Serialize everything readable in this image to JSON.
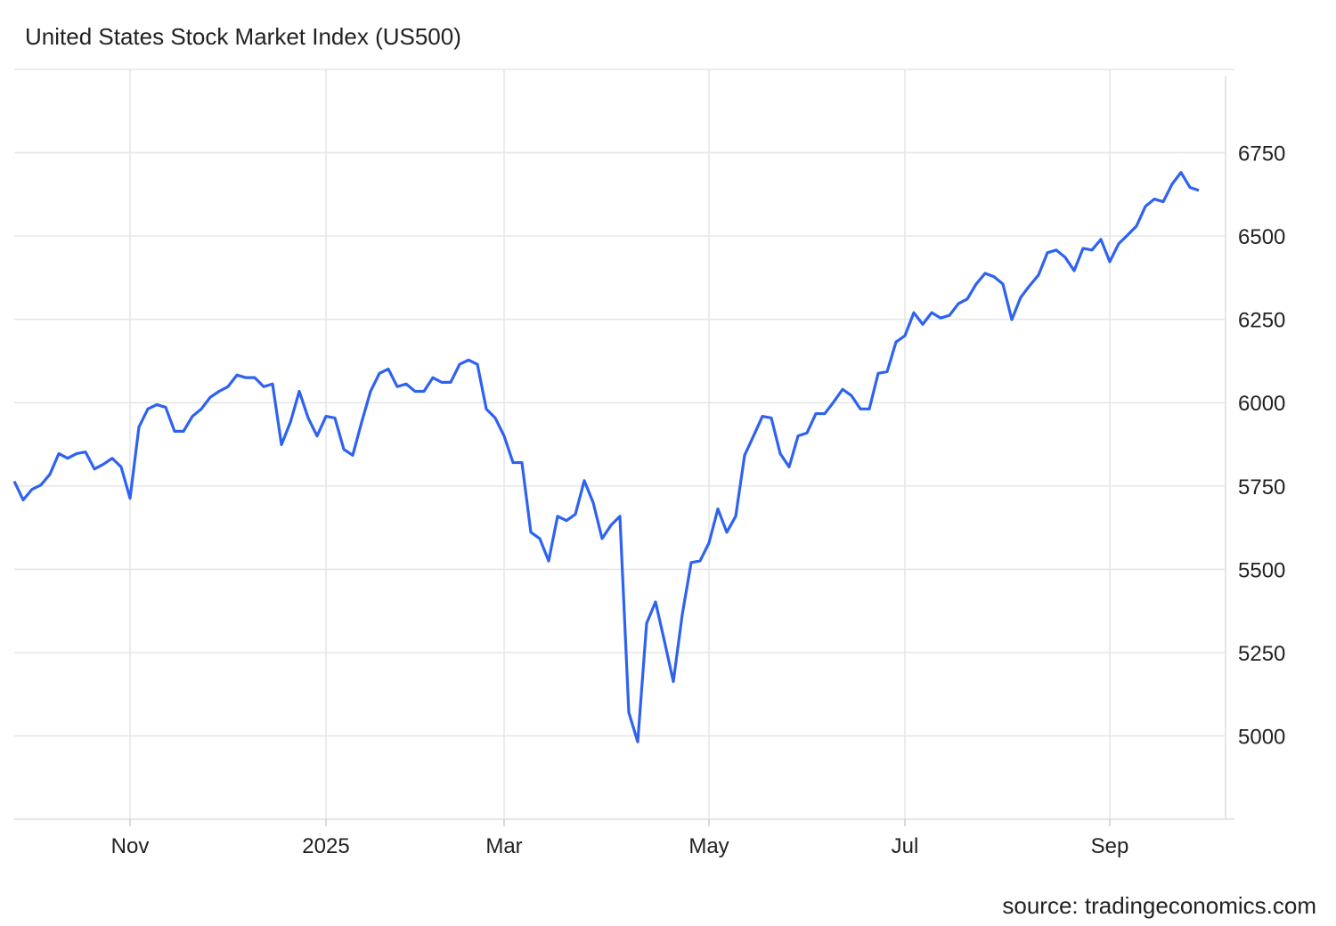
{
  "chart_data": {
    "type": "line",
    "title": "United States Stock Market Index (US500)",
    "source": "source: tradingeconomics.com",
    "color": "#2e62f0",
    "ylim": [
      4750,
      7000
    ],
    "yticks": [
      5000,
      5250,
      5500,
      5750,
      6000,
      6250,
      6500,
      6750
    ],
    "grid": true,
    "categories": [
      null,
      null,
      null,
      null,
      null,
      null,
      null,
      null,
      null,
      null,
      null,
      null,
      null,
      "Nov",
      null,
      null,
      null,
      null,
      null,
      null,
      null,
      null,
      null,
      null,
      null,
      null,
      null,
      null,
      null,
      null,
      null,
      null,
      null,
      null,
      null,
      "2025",
      null,
      null,
      null,
      null,
      null,
      null,
      null,
      null,
      null,
      null,
      null,
      null,
      null,
      null,
      null,
      null,
      null,
      null,
      null,
      "Mar",
      null,
      null,
      null,
      null,
      null,
      null,
      null,
      null,
      null,
      null,
      null,
      null,
      null,
      null,
      null,
      null,
      null,
      null,
      null,
      null,
      null,
      null,
      "May",
      null,
      null,
      null,
      null,
      null,
      null,
      null,
      null,
      null,
      null,
      null,
      null,
      null,
      null,
      null,
      null,
      null,
      null,
      null,
      null,
      null,
      "Jul",
      null,
      null,
      null,
      null,
      null,
      null,
      null,
      null,
      null,
      null,
      null,
      null,
      null,
      null,
      null,
      null,
      null,
      null,
      null,
      null,
      null,
      null,
      "Sep",
      null,
      null,
      null,
      null,
      null,
      null,
      null,
      null,
      null,
      null
    ],
    "values": [
      5764,
      5708,
      5740,
      5753,
      5785,
      5847,
      5833,
      5847,
      5852,
      5801,
      5815,
      5833,
      5807,
      5713,
      5927,
      5981,
      5994,
      5986,
      5914,
      5914,
      5959,
      5981,
      6016,
      6034,
      6048,
      6083,
      6075,
      6075,
      6048,
      6056,
      5874,
      5941,
      6034,
      5954,
      5900,
      5959,
      5954,
      5860,
      5842,
      5941,
      6034,
      6088,
      6101,
      6048,
      6056,
      6034,
      6034,
      6075,
      6061,
      6061,
      6115,
      6128,
      6115,
      5981,
      5954,
      5900,
      5820,
      5820,
      5611,
      5592,
      5525,
      5659,
      5646,
      5665,
      5766,
      5700,
      5592,
      5632,
      5659,
      5070,
      4982,
      5338,
      5402,
      5284,
      5163,
      5364,
      5520,
      5525,
      5579,
      5681,
      5611,
      5659,
      5842,
      5900,
      5959,
      5954,
      5847,
      5807,
      5900,
      5909,
      5967,
      5967,
      6002,
      6040,
      6021,
      5981,
      5981,
      6088,
      6093,
      6182,
      6201,
      6270,
      6235,
      6270,
      6254,
      6262,
      6297,
      6311,
      6356,
      6388,
      6378,
      6356,
      6249,
      6316,
      6351,
      6383,
      6450,
      6458,
      6436,
      6396,
      6463,
      6458,
      6490,
      6423,
      6477,
      6503,
      6530,
      6589,
      6611,
      6603,
      6656,
      6691,
      6646,
      6637
    ]
  }
}
